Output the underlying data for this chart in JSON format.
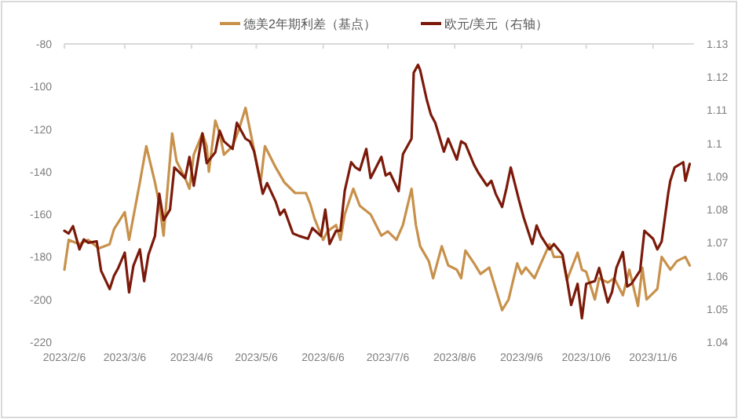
{
  "chart_data": {
    "type": "line",
    "legend": "top",
    "xlim": [
      "2023-02-06",
      "2023-11-25"
    ],
    "xticks": [
      {
        "value": "2023-02-06",
        "label": "2023/2/6"
      },
      {
        "value": "2023-03-06",
        "label": "2023/3/6"
      },
      {
        "value": "2023-04-06",
        "label": "2023/4/6"
      },
      {
        "value": "2023-05-06",
        "label": "2023/5/6"
      },
      {
        "value": "2023-06-06",
        "label": "2023/6/6"
      },
      {
        "value": "2023-07-06",
        "label": "2023/7/6"
      },
      {
        "value": "2023-08-06",
        "label": "2023/8/6"
      },
      {
        "value": "2023-09-06",
        "label": "2023/9/6"
      },
      {
        "value": "2023-10-06",
        "label": "2023/10/6"
      },
      {
        "value": "2023-11-06",
        "label": "2023/11/6"
      }
    ],
    "ylim": [
      -220,
      -80
    ],
    "yticks": [
      -80,
      -100,
      -120,
      -140,
      -160,
      -180,
      -200,
      -220
    ],
    "y2lim": [
      1.04,
      1.13
    ],
    "y2ticks": [
      1.13,
      1.12,
      1.11,
      1.1,
      1.09,
      1.08,
      1.07,
      1.06,
      1.05,
      1.04
    ],
    "series": [
      {
        "name": "德美2年期利差（基点）",
        "color": "#c8914b",
        "x": [
          "2023-02-06",
          "2023-02-08",
          "2023-02-13",
          "2023-02-17",
          "2023-02-22",
          "2023-02-27",
          "2023-03-01",
          "2023-03-06",
          "2023-03-08",
          "2023-03-13",
          "2023-03-16",
          "2023-03-20",
          "2023-03-22",
          "2023-03-24",
          "2023-03-28",
          "2023-03-30",
          "2023-04-03",
          "2023-04-05",
          "2023-04-07",
          "2023-04-11",
          "2023-04-13",
          "2023-04-14",
          "2023-04-17",
          "2023-04-19",
          "2023-04-21",
          "2023-04-25",
          "2023-04-28",
          "2023-05-01",
          "2023-05-04",
          "2023-05-08",
          "2023-05-10",
          "2023-05-15",
          "2023-05-19",
          "2023-05-24",
          "2023-05-29",
          "2023-05-31",
          "2023-06-02",
          "2023-06-06",
          "2023-06-08",
          "2023-06-12",
          "2023-06-14",
          "2023-06-16",
          "2023-06-20",
          "2023-06-23",
          "2023-06-28",
          "2023-07-03",
          "2023-07-06",
          "2023-07-10",
          "2023-07-13",
          "2023-07-17",
          "2023-07-19",
          "2023-07-21",
          "2023-07-25",
          "2023-07-27",
          "2023-07-31",
          "2023-08-03",
          "2023-08-07",
          "2023-08-09",
          "2023-08-11",
          "2023-08-15",
          "2023-08-18",
          "2023-08-22",
          "2023-08-25",
          "2023-08-28",
          "2023-08-31",
          "2023-09-04",
          "2023-09-06",
          "2023-09-08",
          "2023-09-12",
          "2023-09-15",
          "2023-09-19",
          "2023-09-21",
          "2023-09-25",
          "2023-09-27",
          "2023-10-02",
          "2023-10-04",
          "2023-10-06",
          "2023-10-10",
          "2023-10-12",
          "2023-10-16",
          "2023-10-19",
          "2023-10-23",
          "2023-10-26",
          "2023-10-30",
          "2023-11-01",
          "2023-11-03",
          "2023-11-08",
          "2023-11-10",
          "2023-11-14",
          "2023-11-17",
          "2023-11-21",
          "2023-11-23"
        ],
        "values": [
          -186,
          -172,
          -174,
          -172,
          -176,
          -174,
          -167,
          -159,
          -172,
          -145,
          -128,
          -145,
          -155,
          -170,
          -122,
          -135,
          -143,
          -148,
          -132,
          -122,
          -128,
          -140,
          -116,
          -122,
          -132,
          -128,
          -120,
          -110,
          -125,
          -145,
          -128,
          -138,
          -145,
          -150,
          -150,
          -155,
          -162,
          -172,
          -168,
          -165,
          -172,
          -160,
          -148,
          -156,
          -160,
          -170,
          -168,
          -172,
          -165,
          -148,
          -165,
          -175,
          -182,
          -190,
          -175,
          -184,
          -186,
          -190,
          -177,
          -183,
          -188,
          -185,
          -195,
          -205,
          -200,
          -183,
          -188,
          -185,
          -190,
          -183,
          -174,
          -180,
          -180,
          -191,
          -178,
          -186,
          -187,
          -200,
          -190,
          -192,
          -190,
          -198,
          -186,
          -203,
          -185,
          -200,
          -195,
          -180,
          -186,
          -182,
          -180,
          -184
        ]
      },
      {
        "name": "欧元/美元（右轴）",
        "color": "#7b1a0a",
        "axis": "y2",
        "x": [
          "2023-02-06",
          "2023-02-08",
          "2023-02-10",
          "2023-02-13",
          "2023-02-15",
          "2023-02-17",
          "2023-02-21",
          "2023-02-23",
          "2023-02-27",
          "2023-03-01",
          "2023-03-03",
          "2023-03-06",
          "2023-03-08",
          "2023-03-10",
          "2023-03-13",
          "2023-03-15",
          "2023-03-17",
          "2023-03-20",
          "2023-03-22",
          "2023-03-24",
          "2023-03-27",
          "2023-03-29",
          "2023-04-03",
          "2023-04-05",
          "2023-04-07",
          "2023-04-11",
          "2023-04-13",
          "2023-04-17",
          "2023-04-19",
          "2023-04-21",
          "2023-04-25",
          "2023-04-27",
          "2023-05-01",
          "2023-05-03",
          "2023-05-05",
          "2023-05-09",
          "2023-05-11",
          "2023-05-15",
          "2023-05-17",
          "2023-05-19",
          "2023-05-23",
          "2023-05-26",
          "2023-05-30",
          "2023-06-01",
          "2023-06-05",
          "2023-06-07",
          "2023-06-09",
          "2023-06-12",
          "2023-06-14",
          "2023-06-16",
          "2023-06-19",
          "2023-06-21",
          "2023-06-23",
          "2023-06-26",
          "2023-06-28",
          "2023-07-03",
          "2023-07-05",
          "2023-07-07",
          "2023-07-11",
          "2023-07-13",
          "2023-07-17",
          "2023-07-18",
          "2023-07-20",
          "2023-07-21",
          "2023-07-24",
          "2023-07-26",
          "2023-07-28",
          "2023-08-01",
          "2023-08-03",
          "2023-08-07",
          "2023-08-09",
          "2023-08-11",
          "2023-08-15",
          "2023-08-17",
          "2023-08-21",
          "2023-08-23",
          "2023-08-25",
          "2023-08-28",
          "2023-08-30",
          "2023-09-01",
          "2023-09-05",
          "2023-09-07",
          "2023-09-11",
          "2023-09-13",
          "2023-09-15",
          "2023-09-19",
          "2023-09-21",
          "2023-09-25",
          "2023-09-27",
          "2023-09-29",
          "2023-10-02",
          "2023-10-04",
          "2023-10-06",
          "2023-10-10",
          "2023-10-12",
          "2023-10-16",
          "2023-10-18",
          "2023-10-20",
          "2023-10-23",
          "2023-10-25",
          "2023-10-27",
          "2023-10-31",
          "2023-11-02",
          "2023-11-06",
          "2023-11-08",
          "2023-11-10",
          "2023-11-13",
          "2023-11-14",
          "2023-11-16",
          "2023-11-20",
          "2023-11-21",
          "2023-11-23"
        ],
        "values": [
          1.0736,
          1.0728,
          1.075,
          1.068,
          1.071,
          1.07,
          1.0704,
          1.0616,
          1.056,
          1.06,
          1.0624,
          1.067,
          1.055,
          1.063,
          1.068,
          1.0584,
          1.0664,
          1.072,
          1.0848,
          1.0768,
          1.08,
          1.0927,
          1.0895,
          1.0959,
          1.0872,
          1.103,
          1.094,
          1.0973,
          1.1038,
          1.1006,
          1.0983,
          1.1062,
          1.1014,
          1.1006,
          1.0975,
          1.0848,
          1.088,
          1.0824,
          1.0784,
          1.08,
          1.0728,
          1.072,
          1.0712,
          1.0744,
          1.072,
          1.08,
          1.0696,
          1.0736,
          1.0736,
          1.0856,
          1.0943,
          1.0927,
          1.0919,
          1.0983,
          1.0895,
          1.0959,
          1.0903,
          1.0911,
          1.0856,
          1.0967,
          1.1014,
          1.1213,
          1.1237,
          1.1221,
          1.1133,
          1.1086,
          1.1062,
          1.0975,
          1.1014,
          1.0951,
          1.1006,
          1.0998,
          1.0935,
          1.0911,
          1.0872,
          1.0887,
          1.0848,
          1.0808,
          1.0864,
          1.0927,
          1.0824,
          1.0776,
          1.0696,
          1.0752,
          1.072,
          1.068,
          1.0696,
          1.0664,
          1.0592,
          1.0512,
          1.0576,
          1.0472,
          1.0576,
          1.0584,
          1.0624,
          1.052,
          1.0552,
          1.0624,
          1.0672,
          1.0568,
          1.0576,
          1.0616,
          1.0736,
          1.0712,
          1.068,
          1.0704,
          1.0848,
          1.0887,
          1.0927,
          1.0943,
          1.0887,
          1.0938
        ]
      }
    ]
  }
}
